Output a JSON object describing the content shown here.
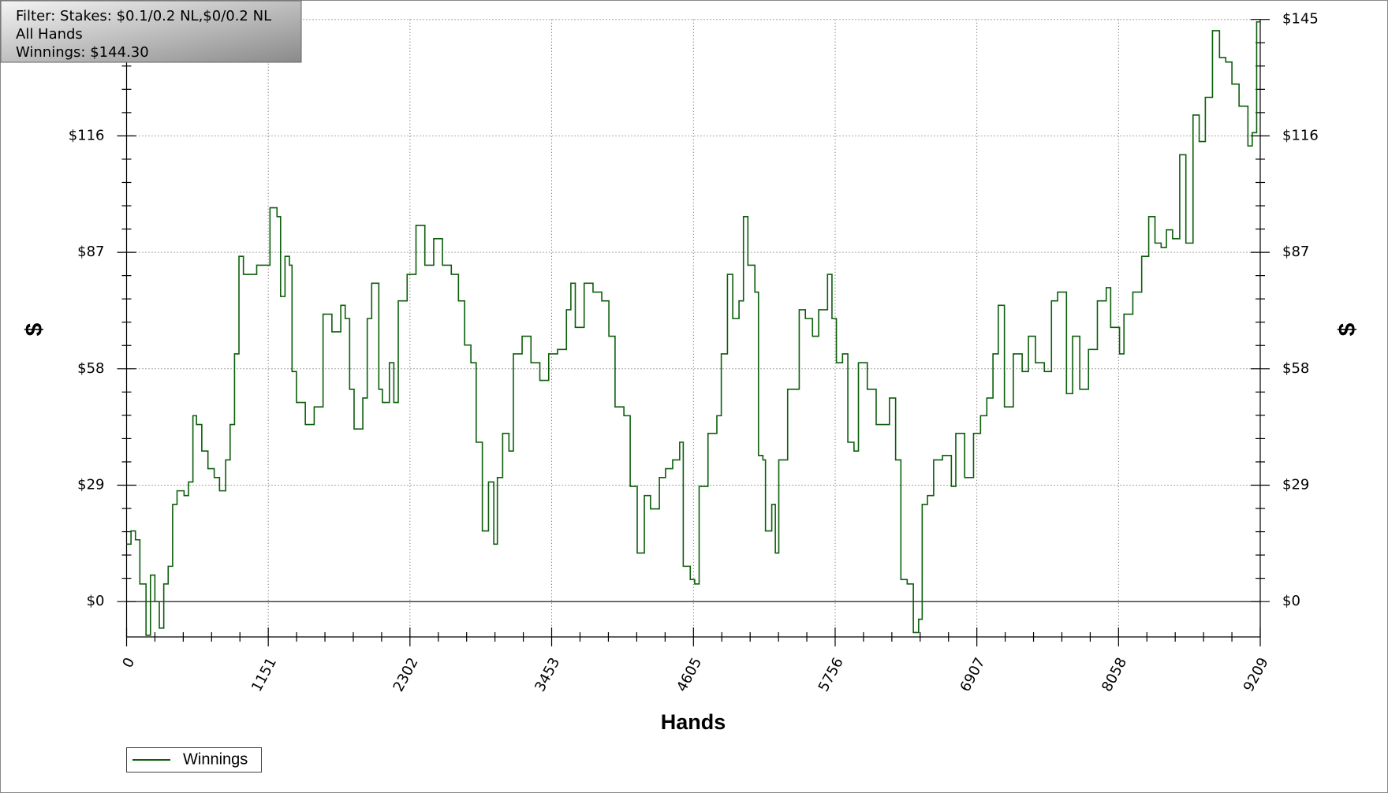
{
  "chart_data": {
    "type": "line",
    "annotations": [
      "Filter: Stakes: $0.1/0.2 NL,$0/0.2 NL",
      "All Hands",
      "Winnings: $144.30"
    ],
    "xlabel": "Hands",
    "ylabel": "$",
    "xlim": [
      0,
      9209
    ],
    "xticks": [
      0,
      1151,
      2302,
      3453,
      4605,
      5756,
      6907,
      8058,
      9209
    ],
    "ylim": [
      -8.8,
      145
    ],
    "yticks": [
      {
        "value": 0,
        "label": "$0"
      },
      {
        "value": 29,
        "label": "$29"
      },
      {
        "value": 58,
        "label": "$58"
      },
      {
        "value": 87,
        "label": "$87"
      },
      {
        "value": 116,
        "label": "$116"
      },
      {
        "value": 145,
        "label": "$145"
      }
    ],
    "grid": true,
    "legend": "bottom-left",
    "x": [
      0,
      36,
      72,
      108,
      158,
      194,
      230,
      266,
      302,
      338,
      374,
      410,
      467,
      503,
      539,
      568,
      611,
      661,
      712,
      755,
      805,
      841,
      877,
      913,
      949,
      1057,
      1129,
      1165,
      1222,
      1251,
      1287,
      1323,
      1344,
      1380,
      1452,
      1524,
      1574,
      1596,
      1668,
      1740,
      1776,
      1812,
      1848,
      1919,
      1955,
      1991,
      2049,
      2078,
      2135,
      2171,
      2207,
      2279,
      2351,
      2423,
      2495,
      2566,
      2638,
      2696,
      2746,
      2797,
      2840,
      2890,
      2940,
      2983,
      3012,
      3055,
      3106,
      3142,
      3213,
      3285,
      3357,
      3429,
      3501,
      3573,
      3609,
      3645,
      3717,
      3789,
      3860,
      3918,
      3968,
      4040,
      4091,
      4148,
      4206,
      4256,
      4328,
      4378,
      4436,
      4493,
      4522,
      4579,
      4615,
      4651,
      4723,
      4795,
      4831,
      4881,
      4924,
      4975,
      5011,
      5047,
      5104,
      5133,
      5169,
      5190,
      5241,
      5270,
      5298,
      5370,
      5428,
      5464,
      5514,
      5572,
      5622,
      5694,
      5730,
      5766,
      5816,
      5859,
      5909,
      5945,
      6017,
      6089,
      6161,
      6197,
      6247,
      6290,
      6341,
      6391,
      6434,
      6463,
      6506,
      6556,
      6628,
      6700,
      6736,
      6808,
      6880,
      6937,
      6988,
      7038,
      7081,
      7131,
      7203,
      7275,
      7326,
      7383,
      7455,
      7513,
      7563,
      7635,
      7685,
      7743,
      7814,
      7886,
      7958,
      7994,
      8066,
      8102,
      8174,
      8246,
      8303,
      8354,
      8404,
      8447,
      8497,
      8555,
      8605,
      8663,
      8713,
      8763,
      8821,
      8878,
      8929,
      8979,
      9037,
      9109,
      9144,
      9180,
      9209
    ],
    "series": [
      {
        "name": "Winnings",
        "color": "#0b5e0b",
        "values": [
          14.3,
          17.6,
          15.4,
          4.4,
          -8.4,
          6.6,
          0,
          -6.6,
          4.4,
          8.8,
          24.2,
          27.6,
          26.4,
          29.8,
          46.3,
          44.1,
          37.5,
          33.1,
          30.9,
          27.6,
          35.3,
          44.1,
          61.7,
          86.0,
          81.5,
          83.8,
          83.8,
          98.1,
          95.9,
          76.0,
          86.0,
          83.8,
          57.3,
          49.6,
          44.1,
          48.5,
          48.5,
          71.6,
          67.2,
          73.8,
          70.5,
          52.9,
          43.0,
          50.7,
          70.5,
          79.3,
          52.9,
          49.6,
          59.5,
          49.6,
          74.9,
          81.5,
          93.7,
          83.8,
          90.4,
          83.8,
          81.5,
          74.9,
          63.9,
          59.5,
          39.7,
          17.6,
          29.8,
          14.3,
          30.9,
          41.9,
          37.5,
          61.7,
          66.1,
          59.5,
          55.1,
          61.7,
          62.8,
          72.7,
          79.3,
          68.3,
          79.3,
          77.1,
          74.9,
          66.1,
          48.5,
          46.3,
          28.7,
          12.1,
          26.4,
          23.1,
          30.9,
          33.1,
          35.3,
          39.7,
          8.8,
          5.5,
          4.4,
          28.7,
          41.9,
          46.3,
          61.7,
          81.5,
          70.5,
          74.9,
          95.9,
          83.8,
          77.1,
          36.4,
          35.3,
          17.6,
          24.2,
          12.1,
          35.3,
          52.9,
          52.9,
          72.7,
          70.5,
          66.1,
          72.7,
          81.5,
          70.5,
          59.5,
          61.7,
          39.7,
          37.5,
          59.5,
          52.9,
          44.1,
          44.1,
          50.7,
          35.3,
          5.5,
          4.4,
          -7.7,
          -4.4,
          24.2,
          26.4,
          35.3,
          36.4,
          28.7,
          41.9,
          30.9,
          41.9,
          46.3,
          50.7,
          61.7,
          73.8,
          48.5,
          61.7,
          57.3,
          66.1,
          59.5,
          57.3,
          74.9,
          77.1,
          51.8,
          66.1,
          52.9,
          62.8,
          74.9,
          78.2,
          68.3,
          61.7,
          71.6,
          77.1,
          86.0,
          95.9,
          89.3,
          88.2,
          92.6,
          90.4,
          111.3,
          89.3,
          121.2,
          114.6,
          125.6,
          142.2,
          135.5,
          134.4,
          128.9,
          123.4,
          113.5,
          116.8,
          144.4,
          144.3
        ]
      }
    ]
  }
}
